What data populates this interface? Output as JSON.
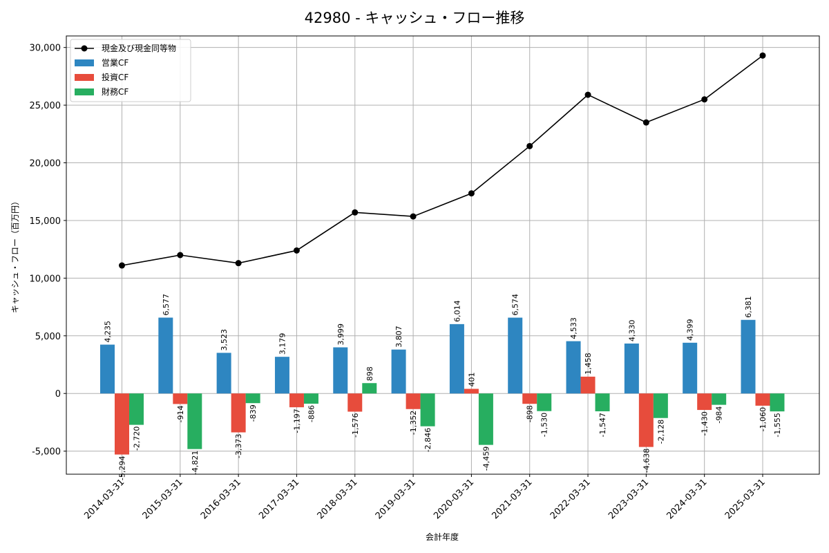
{
  "chart_data": {
    "type": "bar",
    "title": "42980 - キャッシュ・フロー推移",
    "xlabel": "会計年度",
    "ylabel": "キャッシュ・フロー（百万円）",
    "ylim": [
      -7000,
      31000
    ],
    "yticks": [
      -5000,
      0,
      5000,
      10000,
      15000,
      20000,
      25000,
      30000
    ],
    "ytick_labels": [
      "-5,000",
      "0",
      "5,000",
      "10,000",
      "15,000",
      "20,000",
      "25,000",
      "30,000"
    ],
    "grid": true,
    "legend_position": "top-left",
    "categories": [
      "2014-03-31",
      "2015-03-31",
      "2016-03-31",
      "2017-03-31",
      "2018-03-31",
      "2019-03-31",
      "2020-03-31",
      "2021-03-31",
      "2022-03-31",
      "2023-03-31",
      "2024-03-31",
      "2025-03-31"
    ],
    "series": [
      {
        "name": "営業CF",
        "kind": "bar",
        "color": "#2e86c1",
        "values": [
          4235,
          6577,
          3523,
          3179,
          3999,
          3807,
          6014,
          6574,
          4533,
          4330,
          4399,
          6381
        ],
        "labels": [
          "4,235",
          "6,577",
          "3,523",
          "3,179",
          "3,999",
          "3,807",
          "6,014",
          "6,574",
          "4,533",
          "4,330",
          "4,399",
          "6,381"
        ]
      },
      {
        "name": "投資CF",
        "kind": "bar",
        "color": "#e74c3c",
        "values": [
          -5294,
          -914,
          -3373,
          -1197,
          -1576,
          -1352,
          401,
          -898,
          1458,
          -4638,
          -1430,
          -1060
        ],
        "labels": [
          "-5,294",
          "-914",
          "-3,373",
          "-1,197",
          "-1,576",
          "-1,352",
          "401",
          "-898",
          "1,458",
          "-4,638",
          "-1,430",
          "-1,060"
        ]
      },
      {
        "name": "財務CF",
        "kind": "bar",
        "color": "#27ae60",
        "values": [
          -2720,
          -4821,
          -839,
          -886,
          898,
          -2846,
          -4459,
          -1530,
          -1547,
          -2128,
          -984,
          -1555
        ],
        "labels": [
          "-2,720",
          "-4,821",
          "-839",
          "-886",
          "898",
          "-2,846",
          "-4,459",
          "-1,530",
          "-1,547",
          "-2,128",
          "-984",
          "-1,555"
        ]
      },
      {
        "name": "現金及び現金同等物",
        "kind": "line",
        "color": "#000000",
        "values": [
          11100,
          12000,
          11300,
          12400,
          15700,
          15350,
          17350,
          21450,
          25900,
          23500,
          25500,
          29300
        ]
      }
    ],
    "legend_order": [
      "現金及び現金同等物",
      "営業CF",
      "投資CF",
      "財務CF"
    ]
  }
}
